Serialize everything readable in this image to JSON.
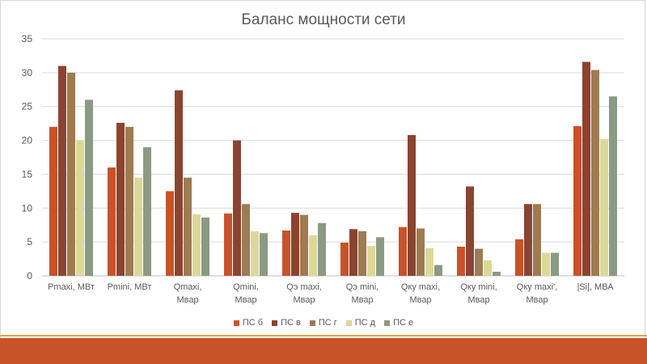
{
  "chart_data": {
    "type": "bar",
    "title": "Баланс мощности сети",
    "categories": [
      [
        "Pmaxi, МВт"
      ],
      [
        "Pmini, МВт"
      ],
      [
        "Qmaxi,",
        "Мвар"
      ],
      [
        "Qmini,",
        "Мвар"
      ],
      [
        "Qэ maxi,",
        "Мвар"
      ],
      [
        "Qэ mini,",
        "Мвар"
      ],
      [
        "Qку maxi,",
        "Мвар"
      ],
      [
        "Qку mini,",
        "Мвар"
      ],
      [
        "Qку maxi',",
        "Мвар"
      ],
      [
        "|Si|, МВА"
      ]
    ],
    "series": [
      {
        "name": "ПС б",
        "color": "#c8522a",
        "values": [
          22,
          16,
          12.5,
          9.2,
          6.7,
          4.9,
          7.2,
          4.3,
          5.4,
          22.1
        ]
      },
      {
        "name": "ПС в",
        "color": "#8b4431",
        "values": [
          31,
          22.6,
          27.4,
          20,
          9.3,
          6.9,
          20.8,
          13.2,
          10.6,
          31.6
        ]
      },
      {
        "name": "ПС г",
        "color": "#9e7b50",
        "values": [
          30,
          22,
          14.5,
          10.6,
          9,
          6.6,
          7,
          4,
          10.6,
          30.4
        ]
      },
      {
        "name": "ПС д",
        "color": "#dcd898",
        "values": [
          20,
          14.5,
          9.1,
          6.6,
          6,
          4.4,
          4.1,
          2.3,
          3.4,
          20.2
        ]
      },
      {
        "name": "ПС е",
        "color": "#8b9a82",
        "values": [
          26,
          19,
          8.6,
          6.3,
          7.8,
          5.7,
          1.6,
          0.6,
          3.4,
          26.5
        ]
      }
    ],
    "ylim": [
      0,
      35
    ],
    "yticks": [
      0,
      5,
      10,
      15,
      20,
      25,
      30,
      35
    ],
    "grid": true,
    "legend_position": "bottom"
  }
}
